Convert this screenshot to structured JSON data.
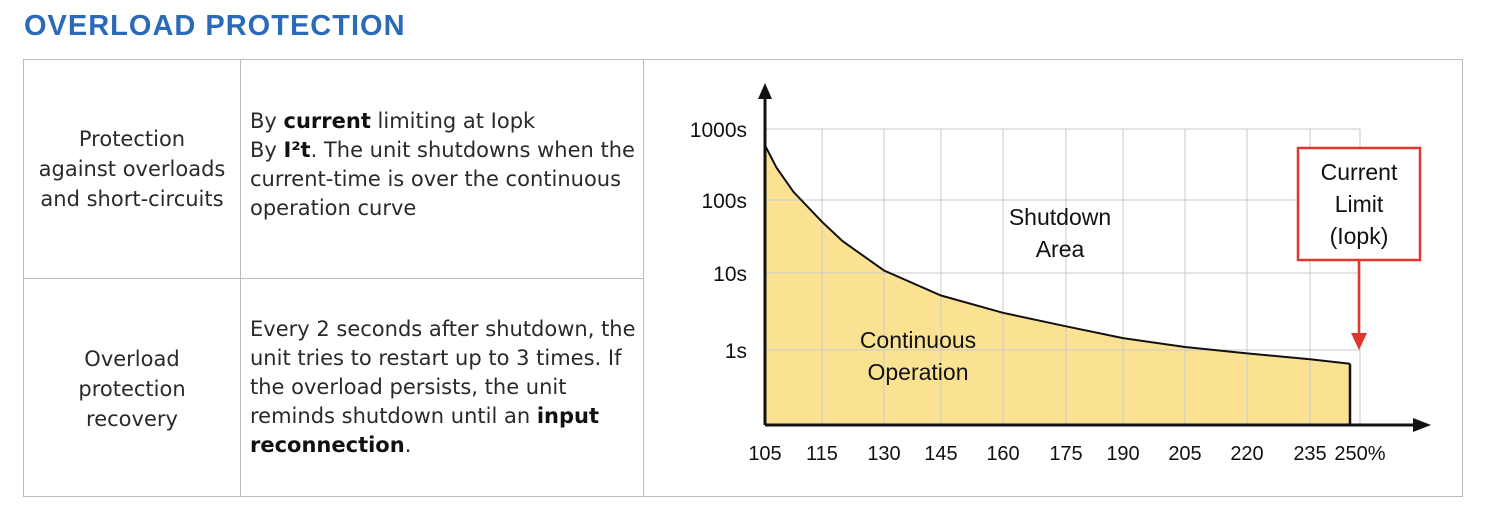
{
  "title": "OVERLOAD PROTECTION",
  "rows": [
    {
      "label": "Protection against overloads and short-circuits",
      "label_lines": [
        "Protection",
        "against overloads",
        "and short-circuits"
      ],
      "desc_parts": [
        [
          [
            "",
            "By "
          ],
          [
            "b",
            "current"
          ],
          [
            "",
            " limiting at Iopk"
          ]
        ],
        [
          [
            "",
            "By "
          ],
          [
            "b",
            "I²t"
          ],
          [
            "",
            ". The unit shutdowns when the current-time is over the continuous operation curve"
          ]
        ]
      ]
    },
    {
      "label": "Overload protection recovery",
      "label_lines": [
        "Overload",
        "protection",
        "recovery"
      ],
      "desc_parts": [
        [
          [
            "",
            "Every 2 seconds after shutdown, the unit tries to restart up to 3 times. If the overload persists, the unit reminds shutdown until an "
          ],
          [
            "b",
            "input reconnection"
          ],
          [
            "",
            "."
          ]
        ]
      ]
    }
  ],
  "chart_data": {
    "type": "area",
    "x_ticks": [
      "105",
      "115",
      "130",
      "145",
      "160",
      "175",
      "190",
      "205",
      "220",
      "235",
      "250%"
    ],
    "y_ticks": [
      "1000s",
      "100s",
      "10s",
      "1s"
    ],
    "y_scale": "log",
    "grid": true,
    "curve_label": [
      "Continuous",
      "Operation"
    ],
    "area_label": [
      "Shutdown",
      "Area"
    ],
    "callout": [
      "Current",
      "Limit",
      "(Iopk)"
    ],
    "callout_color": "#e0362c",
    "fill_color": "#fbe293",
    "curve": [
      {
        "x": 105,
        "y": 600
      },
      {
        "x": 107,
        "y": 300
      },
      {
        "x": 110,
        "y": 140
      },
      {
        "x": 115,
        "y": 55
      },
      {
        "x": 120,
        "y": 30
      },
      {
        "x": 130,
        "y": 12
      },
      {
        "x": 145,
        "y": 5.5
      },
      {
        "x": 160,
        "y": 3.2
      },
      {
        "x": 175,
        "y": 2.1
      },
      {
        "x": 190,
        "y": 1.45
      },
      {
        "x": 205,
        "y": 1.1
      },
      {
        "x": 220,
        "y": 0.9
      },
      {
        "x": 235,
        "y": 0.75
      },
      {
        "x": 247,
        "y": 0.65
      }
    ]
  }
}
